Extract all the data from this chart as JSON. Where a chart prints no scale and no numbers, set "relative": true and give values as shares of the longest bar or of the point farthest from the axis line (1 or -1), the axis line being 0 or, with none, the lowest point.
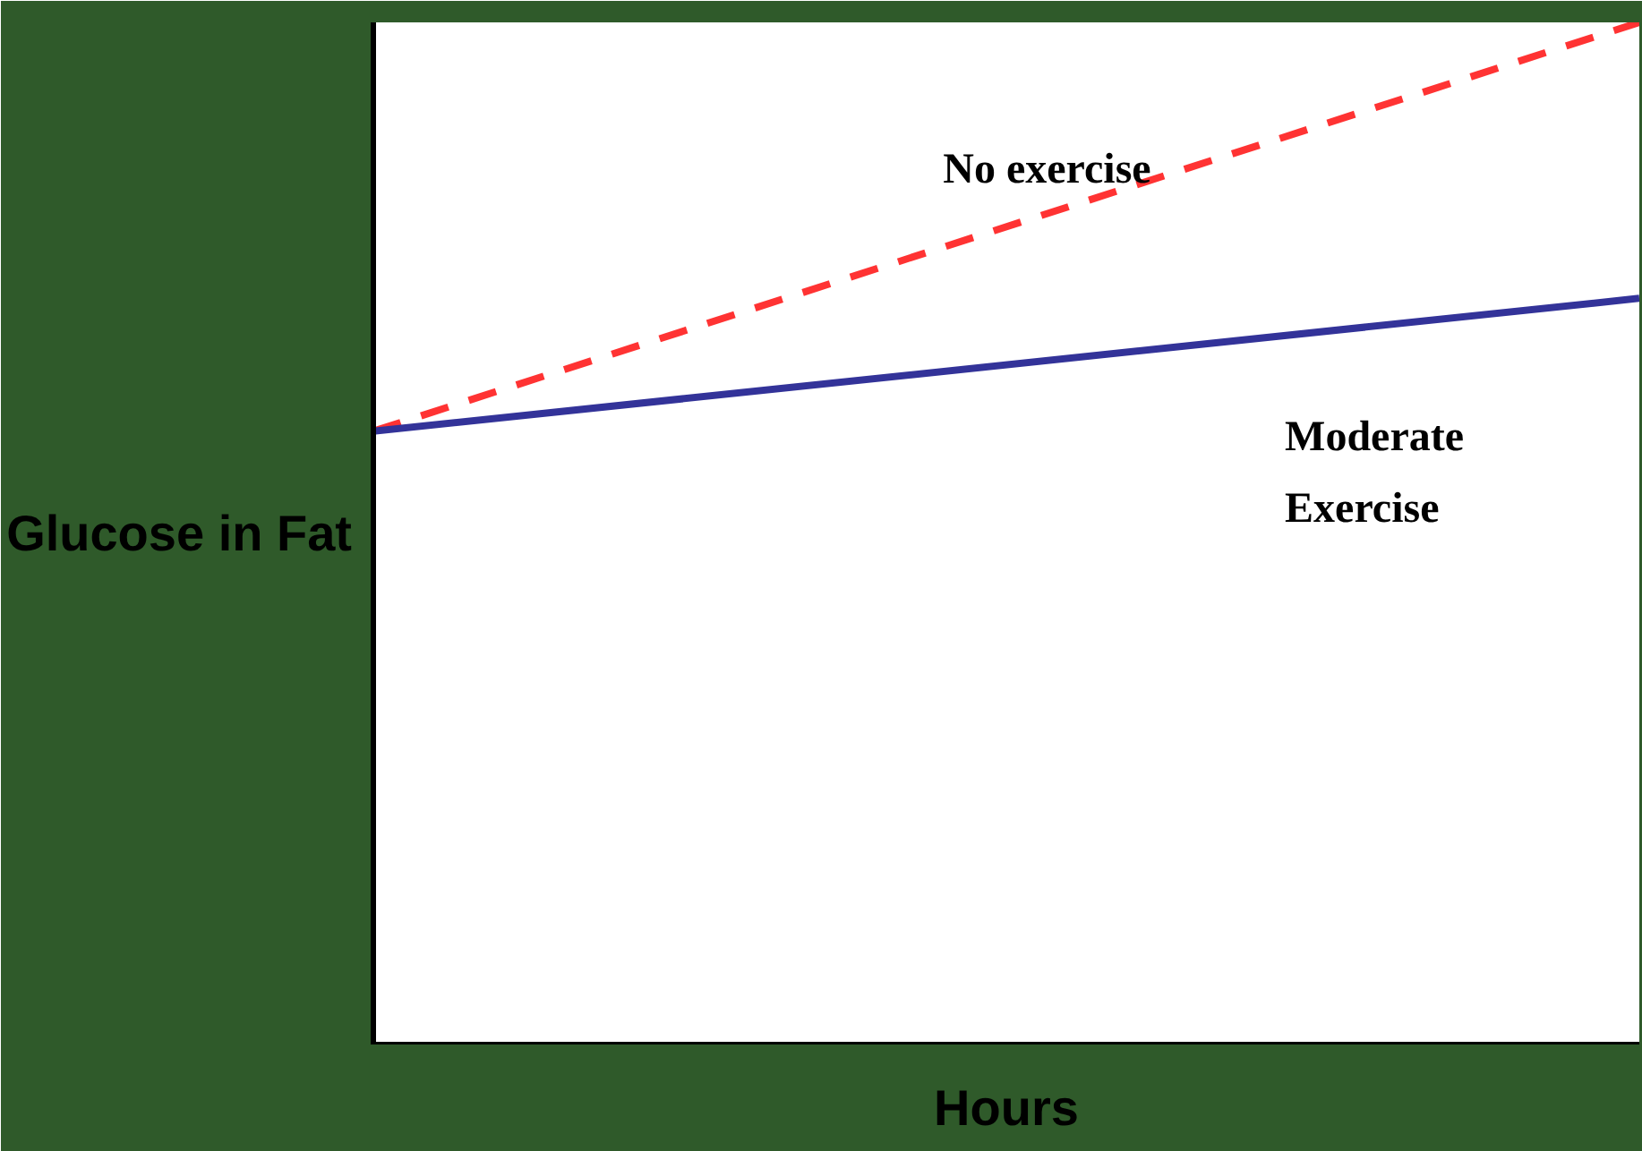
{
  "chart_data": {
    "type": "line",
    "relative": true,
    "xlabel": "Hours",
    "ylabel": "Glucose in Fat",
    "categories": [
      null,
      null
    ],
    "ref_lines": [
      {
        "axis": "y",
        "value": 0,
        "color": "#000000",
        "line_style": "solid"
      }
    ],
    "series": [
      {
        "name": "No exercise",
        "color": "#ff3333",
        "line_style": "dashed",
        "values": [
          0.6,
          1
        ]
      },
      {
        "name": "Moderate Exercise",
        "color": "#333399",
        "line_style": "solid",
        "values": [
          0.6,
          0.73
        ]
      }
    ]
  }
}
